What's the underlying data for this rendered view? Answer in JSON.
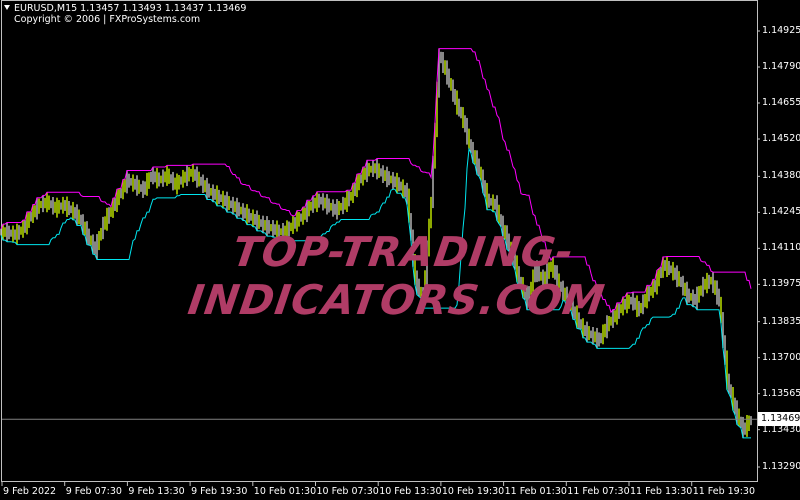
{
  "header": {
    "symbol_line": "EURUSD,M15  1.13457 1.13493 1.13437 1.13469",
    "copyright": "Copyright © 2006 | FXProSystems.com"
  },
  "watermark": "TOP-TRADING-INDICATORS.COM",
  "colors": {
    "up_bar": "#c8f000",
    "down_bar": "#c0c0c0",
    "upper_line": "#ff00ff",
    "lower_line": "#00e5ee",
    "background": "#000000",
    "watermark": "#b03c66"
  },
  "chart_data": {
    "type": "bar",
    "symbol": "EURUSD",
    "timeframe": "M15",
    "current_price": "1.13469",
    "y_ticks": [
      "1.14925",
      "1.14790",
      "1.14655",
      "1.14520",
      "1.14380",
      "1.14245",
      "1.14110",
      "1.13975",
      "1.13835",
      "1.13700",
      "1.13565",
      "1.13430",
      "1.13290"
    ],
    "ylim": [
      1.1323,
      1.1504
    ],
    "x_ticks": [
      "9 Feb 2022",
      "9 Feb 07:30",
      "9 Feb 13:30",
      "9 Feb 19:30",
      "10 Feb 01:30",
      "10 Feb 07:30",
      "10 Feb 13:30",
      "10 Feb 19:30",
      "11 Feb 01:30",
      "11 Feb 07:30",
      "11 Feb 13:30",
      "11 Feb 19:30"
    ],
    "grid": false,
    "closes": [
      1.14171,
      1.1416,
      1.14186,
      1.14235,
      1.14273,
      1.14284,
      1.14261,
      1.14273,
      1.14254,
      1.14224,
      1.1416,
      1.14104,
      1.14198,
      1.14254,
      1.1431,
      1.14366,
      1.14348,
      1.14329,
      1.14385,
      1.14366,
      1.14385,
      1.14348,
      1.14374,
      1.14396,
      1.14366,
      1.14329,
      1.1431,
      1.14291,
      1.14273,
      1.14254,
      1.14235,
      1.14216,
      1.14198,
      1.14186,
      1.14171,
      1.14179,
      1.14209,
      1.14235,
      1.14273,
      1.14291,
      1.14273,
      1.14254,
      1.14273,
      1.1431,
      1.14366,
      1.14404,
      1.14411,
      1.14385,
      1.14366,
      1.14348,
      1.1431,
      1.13991,
      1.13916,
      1.14291,
      1.14835,
      1.1476,
      1.14666,
      1.14591,
      1.14479,
      1.14404,
      1.14291,
      1.14273,
      1.14179,
      1.14104,
      1.13991,
      1.13916,
      1.14029,
      1.13991,
      1.14048,
      1.13973,
      1.13916,
      1.1386,
      1.13804,
      1.13785,
      1.13766,
      1.13823,
      1.1386,
      1.13898,
      1.13916,
      1.13879,
      1.13935,
      1.13973,
      1.14048,
      1.14029,
      1.13991,
      1.13935,
      1.13916,
      1.13973,
      1.13991,
      1.13916,
      1.13616,
      1.13504,
      1.13429,
      1.13469
    ]
  }
}
